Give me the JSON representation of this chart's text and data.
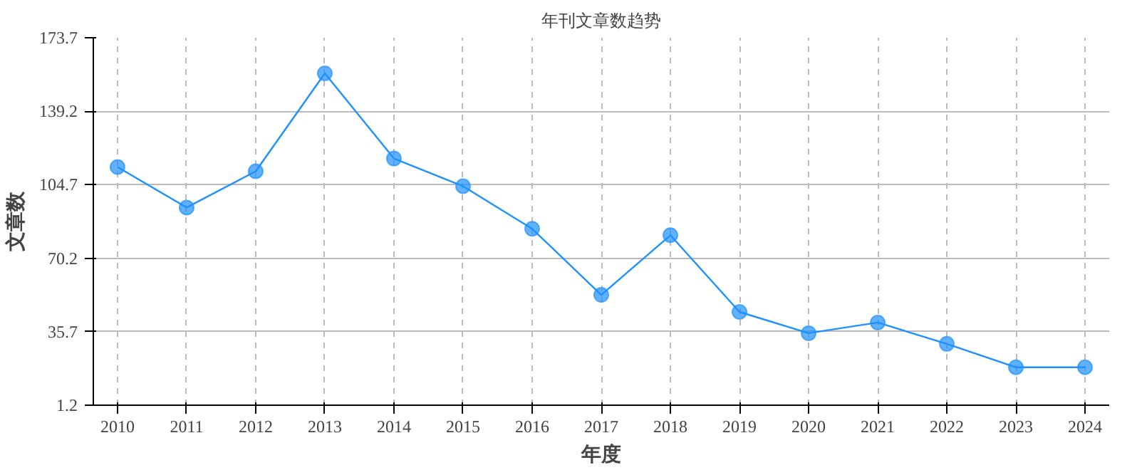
{
  "chart_data": {
    "type": "line",
    "title": "年刊文章数趋势",
    "xlabel": "年度",
    "ylabel": "文章数",
    "categories": [
      "2010",
      "2011",
      "2012",
      "2013",
      "2014",
      "2015",
      "2016",
      "2017",
      "2018",
      "2019",
      "2020",
      "2021",
      "2022",
      "2023",
      "2024"
    ],
    "series": [
      {
        "color": "#1e90ff",
        "values": [
          113,
          94,
          111,
          157,
          117,
          104,
          84,
          53,
          81,
          45,
          35,
          40,
          30,
          19,
          19
        ]
      }
    ],
    "ylim": [
      1.2,
      173.7
    ],
    "yticks": [
      1.2,
      35.7,
      70.2,
      104.7,
      139.2,
      173.7
    ],
    "grid": true,
    "marker": "circle",
    "line_style": "solid"
  }
}
